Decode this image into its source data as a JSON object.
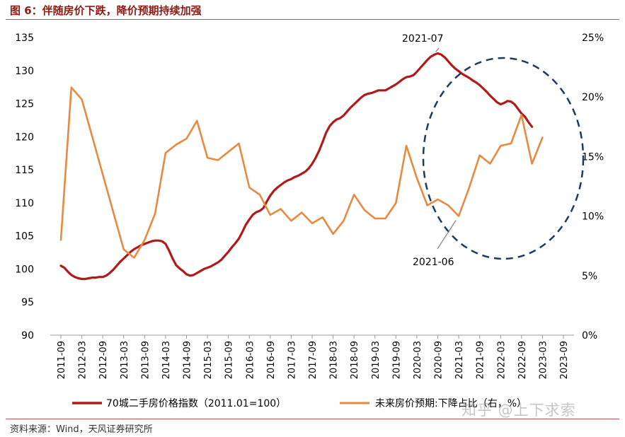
{
  "figure": {
    "title": "图 6：伴随房价下跌，降价预期持续加强",
    "source": "资料来源：Wind，天风证券研究所",
    "watermark": "知乎 @上下求索"
  },
  "colors": {
    "title": "#8B1A14",
    "series_price_index": "#B11A1A",
    "series_expectation": "#E8893E",
    "circle": "#1F3A5A",
    "rule": "#C0504D"
  },
  "chart_data": {
    "type": "line",
    "x_ticks": [
      "2011-09",
      "2012-03",
      "2012-09",
      "2013-03",
      "2013-09",
      "2014-03",
      "2014-09",
      "2015-03",
      "2015-09",
      "2016-03",
      "2016-09",
      "2017-03",
      "2017-09",
      "2018-03",
      "2018-09",
      "2019-03",
      "2019-09",
      "2020-03",
      "2020-09",
      "2021-03",
      "2021-09",
      "2022-03",
      "2022-09",
      "2023-03",
      "2023-09"
    ],
    "y_left": {
      "min": 90,
      "max": 135,
      "step": 5,
      "ticks": [
        "90",
        "95",
        "100",
        "105",
        "110",
        "115",
        "120",
        "125",
        "130",
        "135"
      ]
    },
    "y_right": {
      "min": 0,
      "max": 25,
      "step": 5,
      "ticks": [
        "0%",
        "5%",
        "10%",
        "15%",
        "20%",
        "25%"
      ]
    },
    "grid": false,
    "legend_position": "bottom",
    "series": [
      {
        "name": "70城二手房价格指数（2011.01=100）",
        "axis": "left",
        "points": [
          [
            "2011-09",
            100.5
          ],
          [
            "2011-10",
            100.2
          ],
          [
            "2011-11",
            99.6
          ],
          [
            "2011-12",
            99.1
          ],
          [
            "2012-01",
            98.8
          ],
          [
            "2012-02",
            98.6
          ],
          [
            "2012-03",
            98.5
          ],
          [
            "2012-04",
            98.5
          ],
          [
            "2012-05",
            98.6
          ],
          [
            "2012-06",
            98.7
          ],
          [
            "2012-07",
            98.7
          ],
          [
            "2012-08",
            98.8
          ],
          [
            "2012-09",
            98.8
          ],
          [
            "2012-10",
            99.0
          ],
          [
            "2012-11",
            99.4
          ],
          [
            "2012-12",
            99.9
          ],
          [
            "2013-01",
            100.5
          ],
          [
            "2013-02",
            101.1
          ],
          [
            "2013-03",
            101.6
          ],
          [
            "2013-04",
            102.1
          ],
          [
            "2013-05",
            102.6
          ],
          [
            "2013-06",
            103.0
          ],
          [
            "2013-07",
            103.3
          ],
          [
            "2013-08",
            103.6
          ],
          [
            "2013-09",
            103.8
          ],
          [
            "2013-10",
            104.0
          ],
          [
            "2013-11",
            104.2
          ],
          [
            "2013-12",
            104.3
          ],
          [
            "2014-01",
            104.3
          ],
          [
            "2014-02",
            104.2
          ],
          [
            "2014-03",
            103.8
          ],
          [
            "2014-04",
            102.8
          ],
          [
            "2014-05",
            101.6
          ],
          [
            "2014-06",
            100.6
          ],
          [
            "2014-07",
            100.1
          ],
          [
            "2014-08",
            99.7
          ],
          [
            "2014-09",
            99.2
          ],
          [
            "2014-10",
            99.0
          ],
          [
            "2014-11",
            99.1
          ],
          [
            "2014-12",
            99.4
          ],
          [
            "2015-01",
            99.7
          ],
          [
            "2015-02",
            100.0
          ],
          [
            "2015-03",
            100.2
          ],
          [
            "2015-04",
            100.4
          ],
          [
            "2015-05",
            100.7
          ],
          [
            "2015-06",
            101.0
          ],
          [
            "2015-07",
            101.4
          ],
          [
            "2015-08",
            102.0
          ],
          [
            "2015-09",
            102.6
          ],
          [
            "2015-10",
            103.3
          ],
          [
            "2015-11",
            103.9
          ],
          [
            "2015-12",
            104.6
          ],
          [
            "2016-01",
            105.6
          ],
          [
            "2016-02",
            106.7
          ],
          [
            "2016-03",
            107.5
          ],
          [
            "2016-04",
            108.2
          ],
          [
            "2016-05",
            108.6
          ],
          [
            "2016-06",
            108.8
          ],
          [
            "2016-07",
            109.2
          ],
          [
            "2016-08",
            110.2
          ],
          [
            "2016-09",
            111.1
          ],
          [
            "2016-10",
            111.8
          ],
          [
            "2016-11",
            112.3
          ],
          [
            "2016-12",
            112.7
          ],
          [
            "2017-01",
            113.1
          ],
          [
            "2017-02",
            113.4
          ],
          [
            "2017-03",
            113.6
          ],
          [
            "2017-04",
            113.9
          ],
          [
            "2017-05",
            114.1
          ],
          [
            "2017-06",
            114.4
          ],
          [
            "2017-07",
            114.7
          ],
          [
            "2017-08",
            115.2
          ],
          [
            "2017-09",
            115.9
          ],
          [
            "2017-10",
            116.8
          ],
          [
            "2017-11",
            117.9
          ],
          [
            "2017-12",
            119.2
          ],
          [
            "2018-01",
            120.6
          ],
          [
            "2018-02",
            121.6
          ],
          [
            "2018-03",
            122.2
          ],
          [
            "2018-04",
            122.6
          ],
          [
            "2018-05",
            122.8
          ],
          [
            "2018-06",
            123.2
          ],
          [
            "2018-07",
            123.8
          ],
          [
            "2018-08",
            124.4
          ],
          [
            "2018-09",
            124.9
          ],
          [
            "2018-10",
            125.4
          ],
          [
            "2018-11",
            125.9
          ],
          [
            "2018-12",
            126.3
          ],
          [
            "2019-01",
            126.5
          ],
          [
            "2019-02",
            126.6
          ],
          [
            "2019-03",
            126.8
          ],
          [
            "2019-04",
            127.0
          ],
          [
            "2019-05",
            127.0
          ],
          [
            "2019-06",
            127.0
          ],
          [
            "2019-07",
            127.3
          ],
          [
            "2019-08",
            127.6
          ],
          [
            "2019-09",
            127.9
          ],
          [
            "2019-10",
            128.3
          ],
          [
            "2019-11",
            128.7
          ],
          [
            "2019-12",
            129.0
          ],
          [
            "2020-01",
            129.1
          ],
          [
            "2020-02",
            129.3
          ],
          [
            "2020-03",
            129.8
          ],
          [
            "2020-04",
            130.4
          ],
          [
            "2020-05",
            131.0
          ],
          [
            "2020-06",
            131.6
          ],
          [
            "2020-07",
            132.1
          ],
          [
            "2020-08",
            132.4
          ],
          [
            "2020-09",
            132.6
          ],
          [
            "2020-10",
            132.4
          ],
          [
            "2020-11",
            132.0
          ],
          [
            "2020-12",
            131.4
          ],
          [
            "2021-01",
            130.8
          ],
          [
            "2021-02",
            130.3
          ],
          [
            "2021-03",
            129.9
          ],
          [
            "2021-04",
            129.5
          ],
          [
            "2021-05",
            129.2
          ],
          [
            "2021-06",
            128.9
          ],
          [
            "2021-07",
            128.5
          ],
          [
            "2021-08",
            128.2
          ],
          [
            "2021-09",
            127.8
          ],
          [
            "2021-10",
            127.3
          ],
          [
            "2021-11",
            126.8
          ],
          [
            "2021-12",
            126.2
          ],
          [
            "2022-01",
            125.7
          ],
          [
            "2022-02",
            125.2
          ],
          [
            "2022-03",
            124.9
          ],
          [
            "2022-04",
            125.1
          ],
          [
            "2022-05",
            125.4
          ],
          [
            "2022-06",
            125.3
          ],
          [
            "2022-07",
            124.9
          ],
          [
            "2022-08",
            124.2
          ],
          [
            "2022-09",
            123.5
          ],
          [
            "2022-10",
            123.0
          ],
          [
            "2022-11",
            122.2
          ],
          [
            "2022-12",
            121.5
          ]
        ]
      },
      {
        "name": "未来房价预期:下降占比（右，%）",
        "axis": "right",
        "points": [
          [
            "2011-09",
            8.0
          ],
          [
            "2011-12",
            20.8
          ],
          [
            "2012-03",
            19.8
          ],
          [
            "2013-03",
            7.2
          ],
          [
            "2013-06",
            6.5
          ],
          [
            "2013-09",
            8.0
          ],
          [
            "2013-12",
            10.2
          ],
          [
            "2014-03",
            15.3
          ],
          [
            "2014-06",
            16.0
          ],
          [
            "2014-09",
            16.5
          ],
          [
            "2014-12",
            18.0
          ],
          [
            "2015-03",
            14.9
          ],
          [
            "2015-06",
            14.7
          ],
          [
            "2015-09",
            15.4
          ],
          [
            "2015-12",
            16.1
          ],
          [
            "2016-03",
            12.4
          ],
          [
            "2016-06",
            11.8
          ],
          [
            "2016-09",
            10.1
          ],
          [
            "2016-12",
            10.6
          ],
          [
            "2017-03",
            9.6
          ],
          [
            "2017-06",
            10.3
          ],
          [
            "2017-09",
            9.4
          ],
          [
            "2017-12",
            9.9
          ],
          [
            "2018-03",
            8.5
          ],
          [
            "2018-06",
            9.6
          ],
          [
            "2018-09",
            11.8
          ],
          [
            "2018-12",
            10.5
          ],
          [
            "2019-03",
            9.8
          ],
          [
            "2019-06",
            9.8
          ],
          [
            "2019-09",
            11.1
          ],
          [
            "2019-12",
            15.9
          ],
          [
            "2020-03",
            13.2
          ],
          [
            "2020-06",
            10.9
          ],
          [
            "2020-09",
            11.4
          ],
          [
            "2020-12",
            10.9
          ],
          [
            "2021-03",
            10.0
          ],
          [
            "2021-06",
            12.4
          ],
          [
            "2021-09",
            15.1
          ],
          [
            "2021-12",
            14.4
          ],
          [
            "2022-03",
            15.9
          ],
          [
            "2022-06",
            16.1
          ],
          [
            "2022-09",
            18.5
          ],
          [
            "2022-12",
            14.4
          ],
          [
            "2023-03",
            16.6
          ]
        ]
      }
    ],
    "annotations": [
      {
        "label": "2021-07",
        "series": 0,
        "at": "2020-09"
      },
      {
        "label": "2021-06",
        "series": 1,
        "at": "2021-03"
      }
    ]
  }
}
